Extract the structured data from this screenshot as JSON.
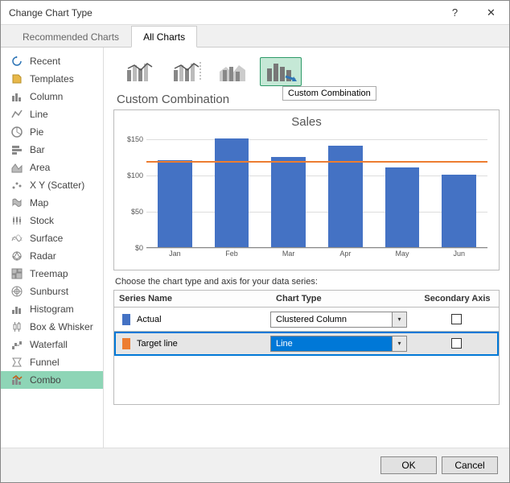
{
  "window": {
    "title": "Change Chart Type",
    "help_icon": "?",
    "close_icon": "✕"
  },
  "tabs": {
    "recommended": "Recommended Charts",
    "all": "All Charts"
  },
  "chart_types": [
    "Recent",
    "Templates",
    "Column",
    "Line",
    "Pie",
    "Bar",
    "Area",
    "X Y (Scatter)",
    "Map",
    "Stock",
    "Surface",
    "Radar",
    "Treemap",
    "Sunburst",
    "Histogram",
    "Box & Whisker",
    "Waterfall",
    "Funnel",
    "Combo"
  ],
  "selected_type_index": 18,
  "section": {
    "title": "Custom Combination",
    "tooltip": "Custom Combination"
  },
  "preview_chart": {
    "title": "Sales",
    "ylim": [
      0,
      160
    ],
    "yticks": [
      0,
      50,
      100,
      150
    ],
    "categories": [
      "Jan",
      "Feb",
      "Mar",
      "Apr",
      "May",
      "Jun"
    ],
    "bar_values": [
      120,
      150,
      125,
      140,
      110,
      100
    ],
    "bar_color": "#4472c4",
    "target_value": 120,
    "target_color": "#ed7d31",
    "grid_color": "#dddddd",
    "bg": "#ffffff"
  },
  "series_section": {
    "instruction": "Choose the chart type and axis for your data series:",
    "headers": {
      "name": "Series Name",
      "type": "Chart Type",
      "axis": "Secondary Axis"
    },
    "rows": [
      {
        "swatch": "#4472c4",
        "name": "Actual",
        "type": "Clustered Column",
        "secondary": false,
        "highlighted": false,
        "type_select_style": "plain"
      },
      {
        "swatch": "#ed7d31",
        "name": "Target line",
        "type": "Line",
        "secondary": false,
        "highlighted": true,
        "type_select_style": "blue"
      }
    ]
  },
  "footer": {
    "ok": "OK",
    "cancel": "Cancel"
  }
}
